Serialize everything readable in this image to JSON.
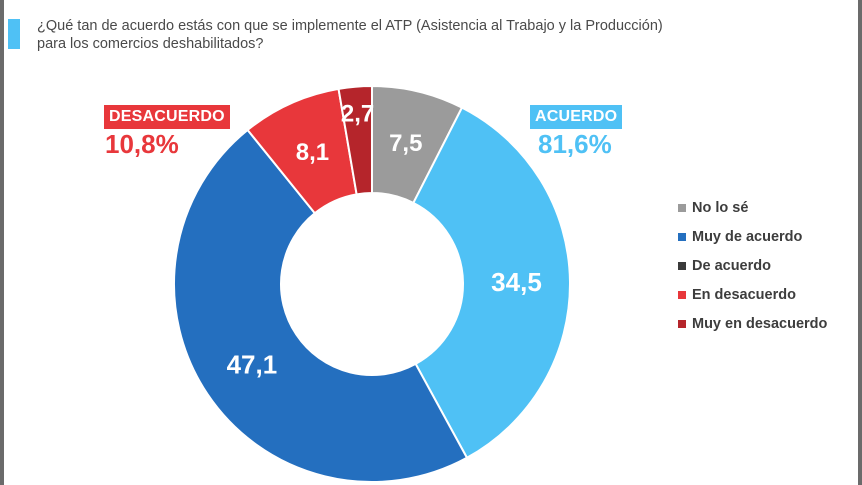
{
  "title": {
    "line1": "¿Qué tan de acuerdo estás con que se implemente el ATP (Asistencia al Trabajo y la Producción)",
    "line2": "para los comercios deshabilitados?"
  },
  "groups": {
    "disagree_label": "DESACUERDO",
    "disagree_value": "10,8%",
    "agree_label": "ACUERDO",
    "agree_value": "81,6%"
  },
  "colors": {
    "accent": "#4fc1f5",
    "disagree": "#e8373b",
    "agree": "#4fc1f5"
  },
  "chart_data": {
    "type": "pie",
    "donut": true,
    "start": "12 o'clock, clockwise",
    "legend_position": "right",
    "slices": [
      {
        "name": "No lo sé",
        "value": 7.5,
        "label": "7,5",
        "color": "#9b9b9b"
      },
      {
        "name": "De acuerdo",
        "value": 34.5,
        "label": "34,5",
        "color": "#4fc1f5"
      },
      {
        "name": "Muy de acuerdo",
        "value": 47.1,
        "label": "47,1",
        "color": "#246fbf"
      },
      {
        "name": "En desacuerdo",
        "value": 8.1,
        "label": "8,1",
        "color": "#e8373b"
      },
      {
        "name": "Muy en desacuerdo",
        "value": 2.7,
        "label": "2,7",
        "color": "#b5252b"
      }
    ],
    "legend": [
      {
        "label": "No lo sé",
        "color": "#9b9b9b"
      },
      {
        "label": "Muy de acuerdo",
        "color": "#246fbf"
      },
      {
        "label": "De acuerdo",
        "color": "#3a3a3a"
      },
      {
        "label": "En desacuerdo",
        "color": "#e8373b"
      },
      {
        "label": "Muy en desacuerdo",
        "color": "#b5252b"
      }
    ]
  }
}
